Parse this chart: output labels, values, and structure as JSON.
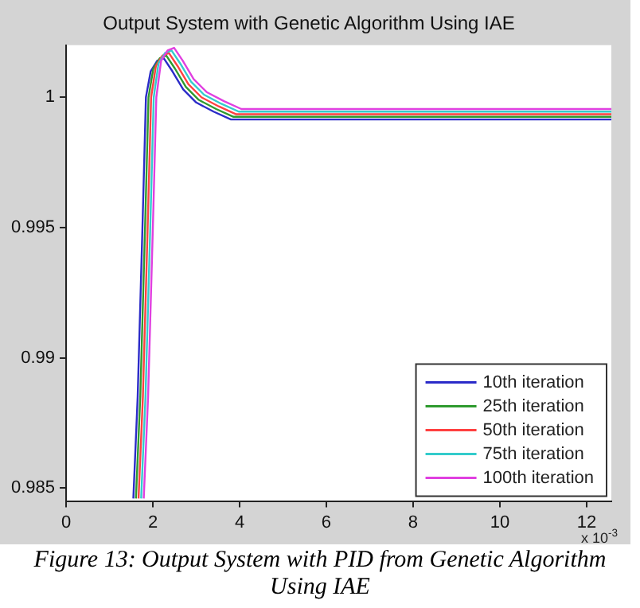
{
  "chart_data": {
    "type": "line",
    "title": "Output System with Genetic Algorithm Using IAE",
    "series": [
      {
        "name": "10th iteration",
        "color": "#2b2bc8",
        "x": [
          1.55,
          1.65,
          1.76,
          1.84,
          1.95,
          2.1,
          2.25,
          2.45,
          2.7,
          3.0,
          3.4,
          3.8,
          12.57
        ],
        "values": [
          0.9846,
          0.9885,
          0.995,
          1.0,
          1.001,
          1.0014,
          1.0015,
          1.001,
          1.0003,
          0.9998,
          0.99945,
          0.99915,
          0.99915
        ]
      },
      {
        "name": "25th iteration",
        "color": "#2e9a2e",
        "x": [
          1.61,
          1.71,
          1.82,
          1.9,
          2.01,
          2.16,
          2.31,
          2.51,
          2.76,
          3.06,
          3.46,
          3.86,
          12.57
        ],
        "values": [
          0.9846,
          0.9885,
          0.995,
          1.0,
          1.0011,
          1.0015,
          1.0016,
          1.0011,
          1.0004,
          0.9999,
          0.99955,
          0.99925,
          0.99925
        ]
      },
      {
        "name": "50th iteration",
        "color": "#ff4040",
        "x": [
          1.67,
          1.77,
          1.88,
          1.96,
          2.07,
          2.22,
          2.37,
          2.57,
          2.82,
          3.12,
          3.52,
          3.92,
          12.57
        ],
        "values": [
          0.9846,
          0.9885,
          0.995,
          1.0,
          1.0012,
          1.0016,
          1.0017,
          1.0012,
          1.0005,
          1.0,
          0.99965,
          0.99935,
          0.99935
        ]
      },
      {
        "name": "75th iteration",
        "color": "#33cccc",
        "x": [
          1.73,
          1.83,
          1.94,
          2.02,
          2.13,
          2.28,
          2.43,
          2.63,
          2.88,
          3.18,
          3.58,
          3.98,
          12.57
        ],
        "values": [
          0.9846,
          0.9885,
          0.995,
          1.0,
          1.0013,
          1.0017,
          1.0018,
          1.0013,
          1.0006,
          1.0001,
          0.99975,
          0.99945,
          0.99945
        ]
      },
      {
        "name": "100th iteration",
        "color": "#e040e0",
        "x": [
          1.79,
          1.89,
          2.0,
          2.08,
          2.19,
          2.34,
          2.49,
          2.69,
          2.94,
          3.24,
          3.64,
          4.04,
          12.57
        ],
        "values": [
          0.9846,
          0.9885,
          0.995,
          1.0,
          1.0014,
          1.0018,
          1.0019,
          1.0014,
          1.0007,
          1.0002,
          0.99985,
          0.99955,
          0.99955
        ]
      }
    ],
    "xlim": [
      0,
      12.57
    ],
    "xticks": [
      0,
      2,
      4,
      6,
      8,
      10,
      12
    ],
    "ylim": [
      0.9845,
      1.002
    ],
    "yticks": [
      0.985,
      0.99,
      0.995,
      1
    ],
    "grid": false,
    "legend": "bottom right",
    "marker": "none",
    "line_style": "solid",
    "annotations": [
      "x 10$^{-3}$",
      "Figure 13: Output System with PID from Genetic Algorithm Using IAE"
    ]
  }
}
